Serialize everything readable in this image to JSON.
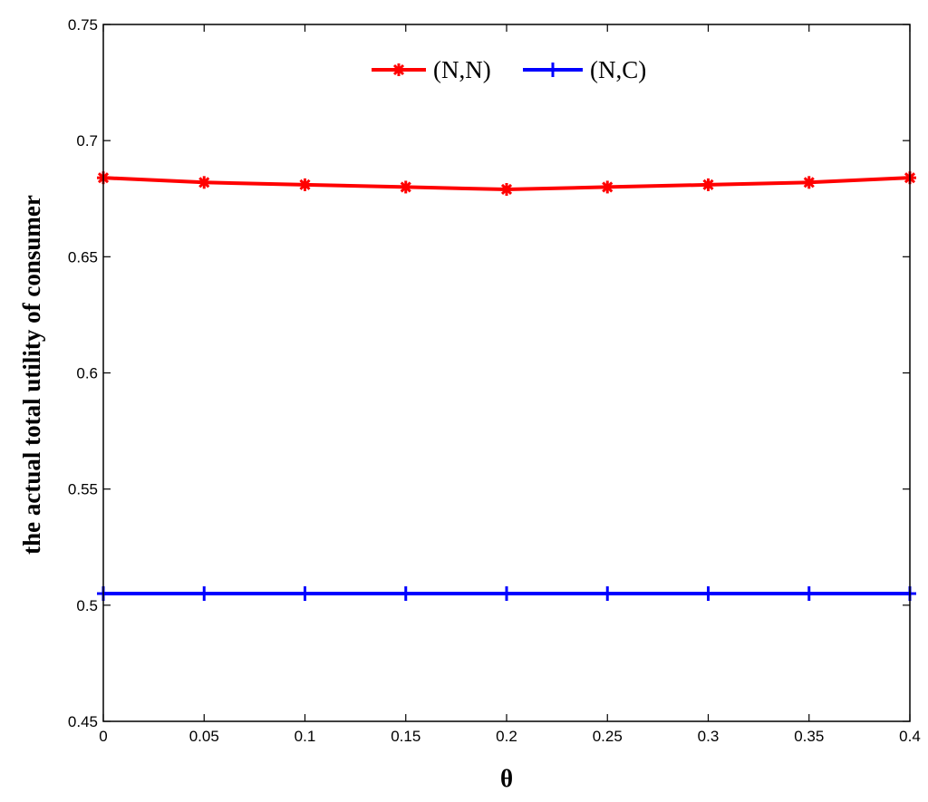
{
  "chart_data": {
    "type": "line",
    "title": "",
    "xlabel": "θ",
    "ylabel": "the actual total utility of consumer",
    "xlim": [
      0,
      0.4
    ],
    "ylim": [
      0.45,
      0.75
    ],
    "x_ticks": [
      "0",
      "0.05",
      "0.1",
      "0.15",
      "0.2",
      "0.25",
      "0.3",
      "0.35",
      "0.4"
    ],
    "y_ticks": [
      "0.45",
      "0.5",
      "0.55",
      "0.6",
      "0.65",
      "0.7",
      "0.75"
    ],
    "x": [
      0,
      0.05,
      0.1,
      0.15,
      0.2,
      0.25,
      0.3,
      0.35,
      0.4
    ],
    "grid": false,
    "legend_position": "top-center",
    "series": [
      {
        "name": "(N,N)",
        "color": "#ff0000",
        "marker": "star",
        "values": [
          0.684,
          0.682,
          0.681,
          0.68,
          0.679,
          0.68,
          0.681,
          0.682,
          0.684
        ]
      },
      {
        "name": "(N,C)",
        "color": "#0000ff",
        "marker": "plus",
        "values": [
          0.505,
          0.505,
          0.505,
          0.505,
          0.505,
          0.505,
          0.505,
          0.505,
          0.505
        ]
      }
    ]
  }
}
